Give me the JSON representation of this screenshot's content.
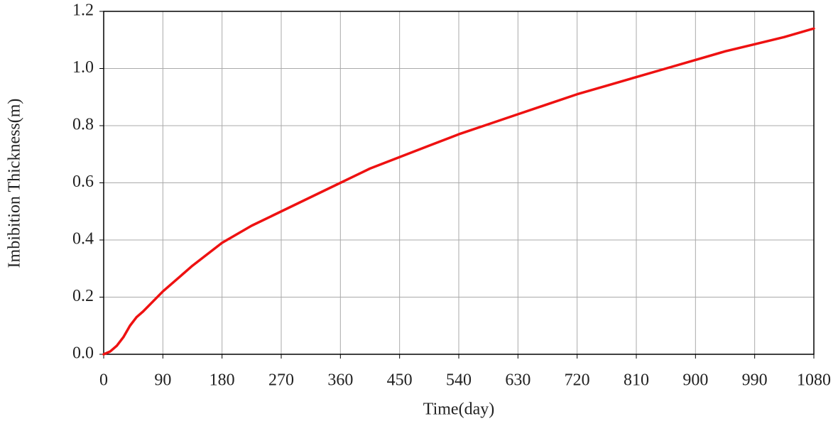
{
  "chart_data": {
    "type": "line",
    "x_label": "Time(day)",
    "y_label": "Imbibition  Thickness(m)",
    "x": [
      0,
      10,
      20,
      30,
      40,
      50,
      60,
      90,
      135,
      180,
      225,
      270,
      315,
      360,
      405,
      450,
      495,
      540,
      585,
      630,
      675,
      720,
      765,
      810,
      855,
      900,
      945,
      990,
      1035,
      1080
    ],
    "series": [
      {
        "name": "Imbibition Thickness",
        "color": "#ee1111",
        "values": [
          0,
          0.01,
          0.03,
          0.06,
          0.1,
          0.13,
          0.15,
          0.22,
          0.31,
          0.39,
          0.45,
          0.5,
          0.55,
          0.6,
          0.65,
          0.69,
          0.73,
          0.77,
          0.805,
          0.84,
          0.875,
          0.91,
          0.94,
          0.97,
          1.0,
          1.03,
          1.06,
          1.085,
          1.11,
          1.14
        ]
      }
    ],
    "xlim": [
      0,
      1080
    ],
    "xticks": [
      0,
      90,
      180,
      270,
      360,
      450,
      540,
      630,
      720,
      810,
      900,
      990,
      1080
    ],
    "ylim": [
      0,
      1.2
    ],
    "yticks": [
      {
        "value": 0,
        "label": "0.0"
      },
      0.2,
      0.4,
      0.6,
      0.8,
      {
        "value": 1,
        "label": "1.0"
      },
      1.2
    ],
    "grid": true
  }
}
